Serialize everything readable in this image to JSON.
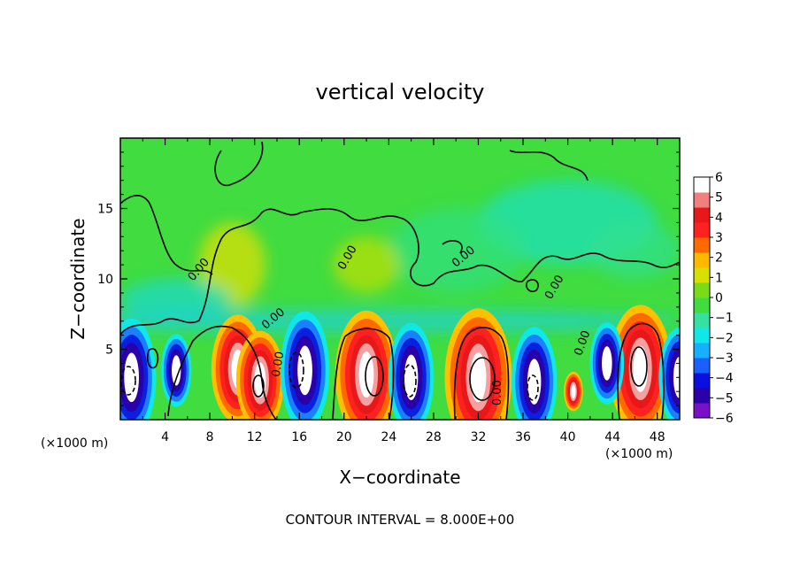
{
  "chart_data": {
    "type": "heatmap",
    "title": "vertical velocity",
    "xlabel": "X−coordinate",
    "ylabel": "Z−coordinate",
    "x_units_left": "(×1000 m)",
    "x_units_right": "(×1000 m)",
    "xlim": [
      0,
      50
    ],
    "ylim": [
      0,
      20
    ],
    "x_ticks": [
      4,
      8,
      12,
      16,
      20,
      24,
      28,
      32,
      36,
      40,
      44,
      48
    ],
    "y_ticks": [
      5,
      10,
      15
    ],
    "colorbar": {
      "min": -6,
      "max": 6,
      "ticks": [
        6,
        5,
        4,
        3,
        2,
        1,
        0,
        -1,
        -2,
        -3,
        -4,
        -5,
        -6
      ],
      "colors": [
        "#7a10c8",
        "#2a00aa",
        "#0a10e0",
        "#1a60ff",
        "#15b0ff",
        "#10e8e8",
        "#35e0a0",
        "#40dc40",
        "#78dc18",
        "#d8e000",
        "#ffb800",
        "#ff6a00",
        "#ff2020",
        "#e81818",
        "#f08080",
        "#ffffff"
      ]
    },
    "updrafts": [
      {
        "x": 10.5,
        "z": 3.6,
        "w": 5.5
      },
      {
        "x": 12.5,
        "z": 2.8,
        "w": 5.0
      },
      {
        "x": 22.0,
        "z": 3.2,
        "w": 6.5
      },
      {
        "x": 32.0,
        "z": 3.0,
        "w": 7.0
      },
      {
        "x": 40.5,
        "z": 2.0,
        "w": 2.0
      },
      {
        "x": 46.5,
        "z": 3.6,
        "w": 6.5
      }
    ],
    "downdrafts": [
      {
        "x": 1.0,
        "z": 3.0,
        "w": -6.5
      },
      {
        "x": 5.0,
        "z": 3.5,
        "w": -4.0
      },
      {
        "x": 16.5,
        "z": 3.5,
        "w": -6.5
      },
      {
        "x": 26.0,
        "z": 3.0,
        "w": -6.0
      },
      {
        "x": 37.0,
        "z": 2.7,
        "w": -6.0
      },
      {
        "x": 43.5,
        "z": 4.0,
        "w": -4.5
      },
      {
        "x": 50.0,
        "z": 3.0,
        "w": -5.5
      }
    ],
    "contour_labels": [
      "0.00",
      "0.00",
      "0.00",
      "0.00",
      "0.00",
      "0.00",
      "0.00",
      "0.00"
    ],
    "contour_interval_text": "CONTOUR INTERVAL = 8.000E+00"
  }
}
